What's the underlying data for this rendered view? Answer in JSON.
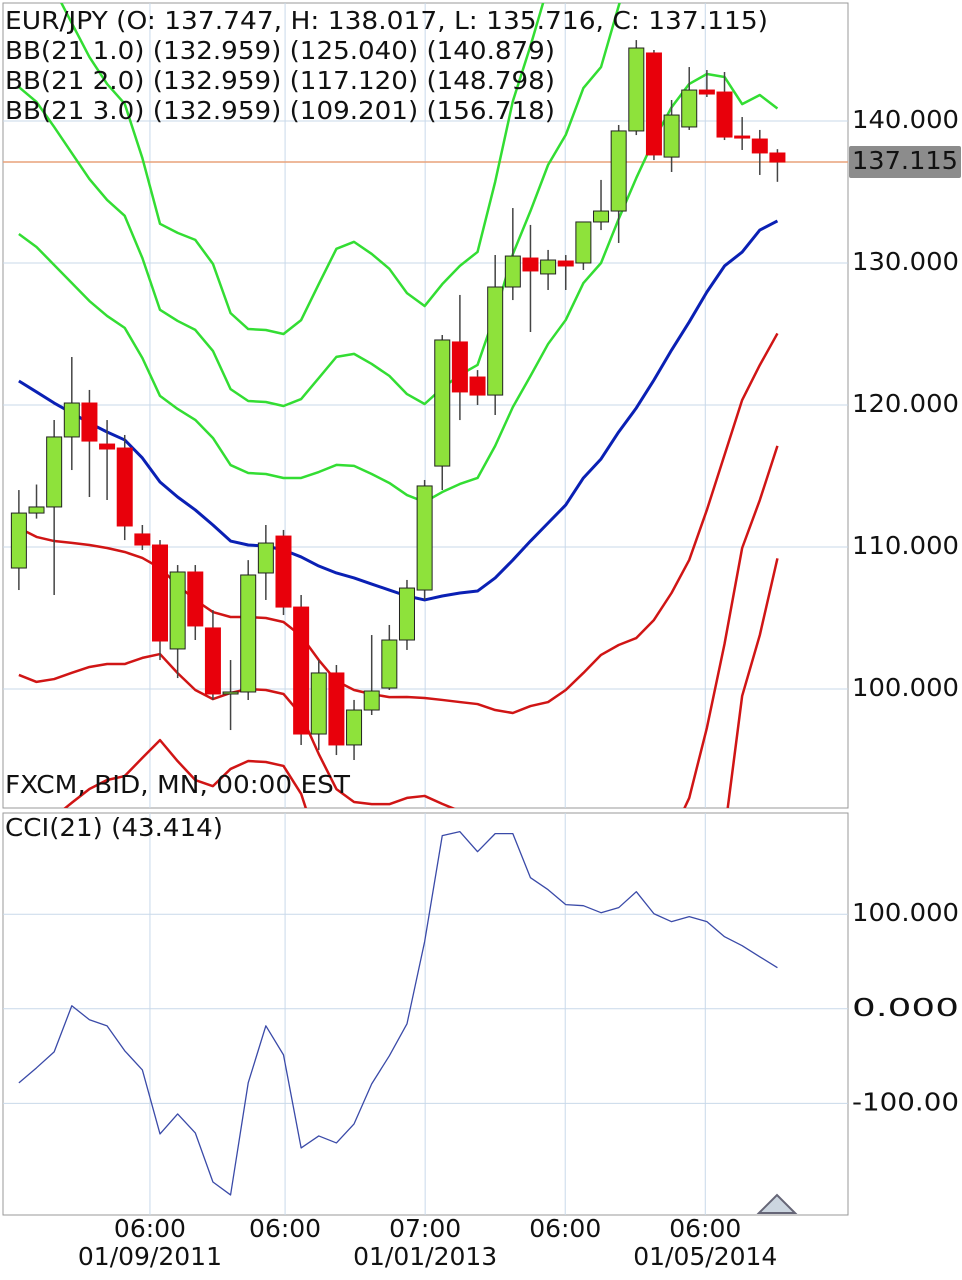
{
  "chart_data": [
    {
      "type": "candlestick",
      "title": "EUR/JPY (O: 137.747, H: 138.017, L: 135.716, C: 137.115)",
      "note": "FXCM, BID, MN, 00:00 EST",
      "open": [
        108.52,
        112.39,
        112.82,
        117.75,
        120.14,
        117.25,
        116.97,
        110.92,
        110.14,
        102.82,
        108.24,
        104.3,
        99.65,
        99.79,
        108.17,
        110.77,
        105.77,
        96.83,
        101.13,
        96.06,
        98.52,
        100.07,
        103.45,
        106.97,
        115.7,
        124.44,
        121.97,
        120.7,
        128.31,
        130.35,
        129.23,
        130.14,
        130.0,
        132.89,
        133.66,
        139.3,
        144.79,
        137.46,
        139.58,
        142.18,
        142.04,
        138.94,
        138.73,
        137.747
      ],
      "high": [
        114.01,
        114.4,
        118.94,
        123.38,
        121.06,
        118.94,
        117.89,
        111.55,
        110.49,
        108.73,
        108.73,
        105.56,
        102.04,
        109.08,
        111.55,
        111.2,
        106.62,
        102.04,
        101.69,
        99.23,
        103.8,
        104.51,
        107.68,
        114.72,
        124.93,
        127.75,
        122.46,
        130.56,
        133.87,
        132.68,
        130.92,
        130.56,
        132.89,
        135.85,
        139.72,
        145.7,
        145.0,
        141.48,
        143.8,
        143.59,
        143.45,
        140.28,
        139.37,
        138.017
      ],
      "low": [
        106.97,
        112.0,
        106.62,
        115.42,
        113.52,
        113.31,
        110.49,
        109.79,
        102.04,
        100.77,
        103.45,
        99.23,
        97.11,
        99.23,
        106.27,
        105.21,
        96.06,
        95.7,
        95.35,
        95.0,
        98.17,
        99.93,
        102.75,
        106.27,
        114.01,
        118.94,
        120.0,
        119.3,
        127.39,
        125.14,
        128.1,
        128.1,
        129.51,
        132.32,
        131.41,
        139.01,
        137.25,
        136.41,
        139.37,
        141.69,
        138.66,
        137.96,
        136.2,
        135.716
      ],
      "close": [
        112.39,
        112.82,
        117.75,
        120.14,
        117.46,
        116.9,
        111.48,
        110.14,
        103.38,
        108.24,
        104.44,
        99.65,
        99.79,
        108.03,
        110.28,
        105.77,
        96.83,
        101.13,
        96.06,
        98.52,
        99.86,
        103.45,
        107.11,
        114.3,
        124.58,
        120.92,
        120.7,
        128.31,
        130.49,
        129.44,
        130.21,
        129.79,
        132.89,
        133.66,
        139.3,
        145.14,
        137.61,
        140.42,
        142.18,
        141.9,
        138.87,
        138.8,
        137.75,
        137.115
      ],
      "up_color": "#8ee23b",
      "down_color": "#e8000b",
      "middle_band": {
        "color": "#0a20b4",
        "values": [
          121.69,
          120.92,
          120.14,
          119.44,
          118.73,
          118.1,
          117.54,
          116.27,
          114.58,
          113.52,
          112.61,
          111.55,
          110.42,
          110.14,
          110.07,
          109.79,
          109.3,
          108.66,
          108.17,
          107.82,
          107.39,
          106.97,
          106.55,
          106.27,
          106.55,
          106.76,
          106.9,
          107.82,
          109.08,
          110.42,
          111.69,
          112.96,
          114.86,
          116.2,
          118.1,
          119.79,
          121.76,
          123.87,
          125.85,
          127.96,
          129.79,
          130.77,
          132.32,
          132.96
        ]
      },
      "bands": [
        {
          "label": "BB(21 1.0) (132.959) (125.040) (140.879)",
          "upper_color": "#33dd33",
          "lower_color": "#d01515",
          "upper": [
            132.04,
            131.13,
            129.86,
            128.59,
            127.32,
            126.27,
            125.43,
            123.31,
            120.64,
            119.72,
            118.95,
            117.68,
            115.77,
            115.21,
            115.14,
            114.86,
            114.86,
            115.28,
            115.78,
            115.71,
            115.14,
            114.51,
            113.66,
            113.17,
            113.87,
            114.44,
            114.86,
            117.12,
            119.85,
            122.04,
            124.3,
            125.99,
            128.59,
            130.0,
            133.1,
            135.99,
            138.66,
            140.97,
            142.61,
            143.31,
            143.1,
            141.19,
            141.83,
            140.88
          ],
          "lower": [
            111.34,
            110.71,
            110.42,
            110.29,
            110.14,
            109.93,
            109.65,
            109.23,
            108.52,
            107.32,
            106.27,
            105.42,
            105.07,
            105.07,
            105.0,
            104.72,
            103.74,
            102.04,
            100.56,
            99.93,
            99.64,
            99.43,
            99.44,
            99.37,
            99.23,
            99.08,
            98.94,
            98.52,
            98.31,
            98.8,
            99.08,
            99.93,
            101.13,
            102.4,
            103.1,
            103.59,
            104.86,
            106.77,
            109.09,
            112.61,
            116.48,
            120.35,
            122.81,
            125.04
          ]
        },
        {
          "label": "BB(21 2.0) (132.959) (117.120) (148.798)",
          "upper_color": "#33dd33",
          "lower_color": "#d01515",
          "upper": [
            142.39,
            141.34,
            139.58,
            137.74,
            135.91,
            134.44,
            133.32,
            130.35,
            126.7,
            125.92,
            125.29,
            123.81,
            121.12,
            120.28,
            120.21,
            119.93,
            120.42,
            121.9,
            123.39,
            123.6,
            122.89,
            122.05,
            120.77,
            120.07,
            121.19,
            122.12,
            122.82,
            126.42,
            130.62,
            133.66,
            136.91,
            139.02,
            142.32,
            143.8,
            148.1,
            152.19,
            155.56,
            158.07,
            159.37,
            158.66,
            156.41,
            151.61,
            151.34,
            148.8
          ],
          "lower": [
            100.99,
            100.5,
            100.7,
            101.14,
            101.55,
            101.76,
            101.76,
            102.19,
            102.46,
            101.12,
            99.93,
            99.29,
            99.72,
            100.0,
            99.93,
            99.65,
            98.18,
            95.42,
            92.95,
            92.04,
            91.89,
            91.89,
            92.33,
            92.47,
            91.91,
            91.4,
            90.98,
            89.22,
            87.54,
            87.18,
            86.47,
            86.9,
            87.4,
            88.6,
            88.1,
            87.39,
            87.96,
            89.67,
            92.33,
            97.26,
            103.17,
            109.93,
            113.3,
            117.12
          ]
        },
        {
          "label": "BB(21 3.0) (132.959) (109.201) (156.718)",
          "upper_color": "#33dd33",
          "lower_color": "#d01515",
          "upper": [
            152.74,
            151.55,
            149.3,
            146.89,
            144.5,
            142.61,
            141.21,
            137.39,
            132.76,
            132.12,
            131.63,
            129.94,
            126.47,
            125.35,
            125.28,
            125.0,
            125.98,
            128.52,
            131.0,
            131.49,
            130.64,
            129.59,
            127.88,
            126.97,
            128.51,
            129.8,
            130.78,
            135.72,
            141.39,
            145.28,
            149.52,
            152.05,
            156.05,
            157.6,
            163.1,
            168.39,
            172.46,
            175.17,
            176.13,
            174.01,
            169.72,
            162.03,
            160.85,
            156.72
          ],
          "lower": [
            90.64,
            90.29,
            90.98,
            91.99,
            92.96,
            93.59,
            93.87,
            95.15,
            96.4,
            94.92,
            93.59,
            93.16,
            94.37,
            94.93,
            94.86,
            94.58,
            92.62,
            88.8,
            85.34,
            84.15,
            84.14,
            84.35,
            85.22,
            85.57,
            84.59,
            83.72,
            83.02,
            79.92,
            76.77,
            75.56,
            73.86,
            73.87,
            73.67,
            74.8,
            73.1,
            71.19,
            71.06,
            72.57,
            75.57,
            81.91,
            89.86,
            99.51,
            103.79,
            109.2
          ]
        }
      ],
      "price_line": {
        "value": 137.115,
        "label": "137.115",
        "color": "#e8a27a"
      },
      "ylim": [
        91.62,
        148.31
      ],
      "yticks": [
        {
          "value": 100,
          "label": "100.000"
        },
        {
          "value": 110,
          "label": "110.000"
        },
        {
          "value": 120,
          "label": "120.000"
        },
        {
          "value": 130,
          "label": "130.000"
        },
        {
          "value": 140,
          "label": "140.000"
        }
      ],
      "grid": true
    },
    {
      "type": "line",
      "title": "CCI(21) (43.414)",
      "color": "#3a4aa8",
      "values": [
        -78.3,
        -62.4,
        -45.5,
        3.2,
        -11.6,
        -18.0,
        -44.4,
        -64.6,
        -132.3,
        -111.1,
        -131.2,
        -183.1,
        -196.8,
        -78.3,
        -18.0,
        -48.7,
        -147.1,
        -134.4,
        -141.8,
        -121.7,
        -79.4,
        -49.7,
        -15.9,
        70.9,
        183.1,
        187.3,
        166.1,
        185.2,
        185.2,
        138.6,
        125.9,
        110.1,
        109.0,
        101.6,
        106.9,
        123.8,
        100.5,
        92.1,
        97.4,
        92.1,
        76.2,
        66.7,
        55.0,
        43.414
      ],
      "ylim": [
        -218,
        207
      ],
      "yticks": [
        {
          "value": -100,
          "label": "-100.00"
        },
        {
          "value": 0,
          "label": "0.000"
        },
        {
          "value": 100,
          "label": "100.000"
        }
      ],
      "xlim": [
        -0.9,
        47.0
      ],
      "xticks": [
        {
          "value": 7.43,
          "label": "06:00"
        },
        {
          "value": 15.09,
          "label": "06:00"
        },
        {
          "value": 23.03,
          "label": "07:00"
        },
        {
          "value": 30.97,
          "label": "06:00"
        },
        {
          "value": 38.91,
          "label": "06:00"
        }
      ],
      "xtick_dates": [
        "01/09/2011",
        null,
        "01/01/2013",
        null,
        "01/05/2014"
      ],
      "grid": true
    }
  ]
}
